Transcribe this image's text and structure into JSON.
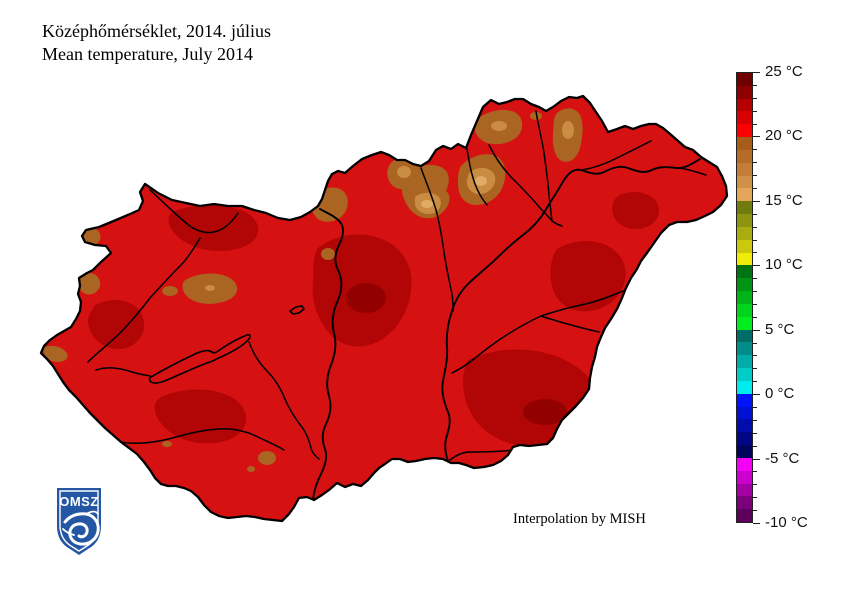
{
  "title": {
    "line1": "Középhőmérséklet, 2014. július",
    "line2": "Mean temperature, July 2014"
  },
  "credit": "Interpolation by MISH",
  "logo": {
    "text": "OMSZ"
  },
  "legend": {
    "unit": "°C",
    "max": 25,
    "min": -10,
    "step_per_segment": 1,
    "tick_labels": [
      "25 °C",
      "20 °C",
      "15 °C",
      "10 °C",
      "5 °C",
      "0 °C",
      "-5 °C",
      "-10 °C"
    ],
    "segment_colors_top_to_bottom": [
      "#700000",
      "#8e0000",
      "#b40000",
      "#d80000",
      "#fc0000",
      "#a95c18",
      "#b46c28",
      "#c27e38",
      "#d09048",
      "#e4a65a",
      "#707c10",
      "#8c9410",
      "#aaac10",
      "#ccc80e",
      "#f0ec0a",
      "#007410",
      "#009414",
      "#00b418",
      "#00d41c",
      "#00ee20",
      "#006c68",
      "#008c88",
      "#00aca8",
      "#00ccc8",
      "#00ecec",
      "#0014fc",
      "#0010d4",
      "#000cac",
      "#000684",
      "#00045c",
      "#f400f4",
      "#cc00cc",
      "#a400a4",
      "#7c007c",
      "#5c005c"
    ]
  },
  "map": {
    "region": "Hungary",
    "palette": {
      "base": "#d61111",
      "dark": "#b20505",
      "darkest": "#920000",
      "brown": "#aa6522",
      "tan": "#c98c42",
      "tanlight": "#e2ab64",
      "logo_blue": "#2456a4"
    }
  }
}
